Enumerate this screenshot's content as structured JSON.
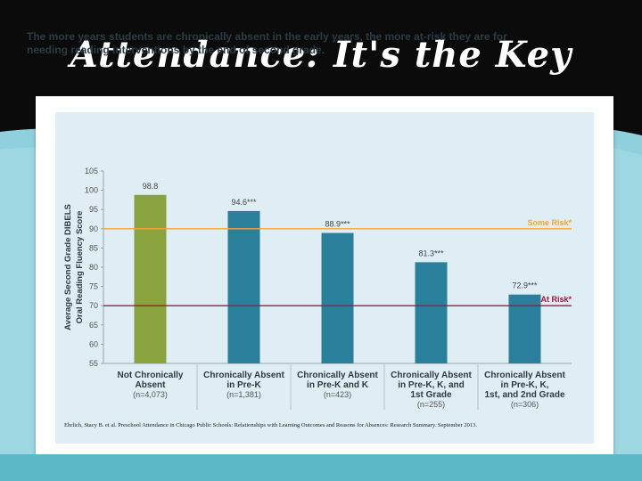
{
  "slide": {
    "title": "Attendance: It's the Key"
  },
  "colors": {
    "background": "#0b0b0b",
    "band": "#8fd0dc",
    "panel": "#dfeef4",
    "bar_green": "#8aa33e",
    "bar_teal": "#2a7f9a",
    "some_risk_line": "#f0a53c",
    "at_risk_line": "#a0183d"
  },
  "chart_data": {
    "type": "bar",
    "title": "The more years students are chronically absent in the early years, the more at-risk they are for needing reading interventions by the end of second grade.",
    "ylabel_line1": "Average Second Grade DIBELS",
    "ylabel_line2": "Oral Reading Fluency Score",
    "ylim": [
      55,
      105
    ],
    "yticks": [
      55,
      60,
      65,
      70,
      75,
      80,
      85,
      90,
      95,
      100,
      105
    ],
    "grid": false,
    "categories": [
      {
        "lines": [
          "Not Chronically",
          "Absent"
        ],
        "n": "(n=4,073)"
      },
      {
        "lines": [
          "Chronically Absent",
          "in Pre-K"
        ],
        "n": "(n=1,381)"
      },
      {
        "lines": [
          "Chronically Absent",
          "in Pre-K and K"
        ],
        "n": "(n=423)"
      },
      {
        "lines": [
          "Chronically Absent",
          "in Pre-K, K, and",
          "1st Grade"
        ],
        "n": "(n=255)"
      },
      {
        "lines": [
          "Chronically Absent",
          "in Pre-K, K,",
          "1st, and 2nd Grade"
        ],
        "n": "(n=306)"
      }
    ],
    "values": [
      98.8,
      94.6,
      88.9,
      81.3,
      72.9
    ],
    "value_labels": [
      "98.8",
      "94.6***",
      "88.9***",
      "81.3***",
      "72.9***"
    ],
    "reference_lines": [
      {
        "label": "Some Risk*",
        "value": 90
      },
      {
        "label": "At Risk*",
        "value": 70
      }
    ]
  },
  "citation": "Ehrlich, Stacy B. et al. Preschool Attendance in Chicago Public Schools: Relationships with Learning Outcomes and Reasons for Absences: Research Summary. September 2013."
}
